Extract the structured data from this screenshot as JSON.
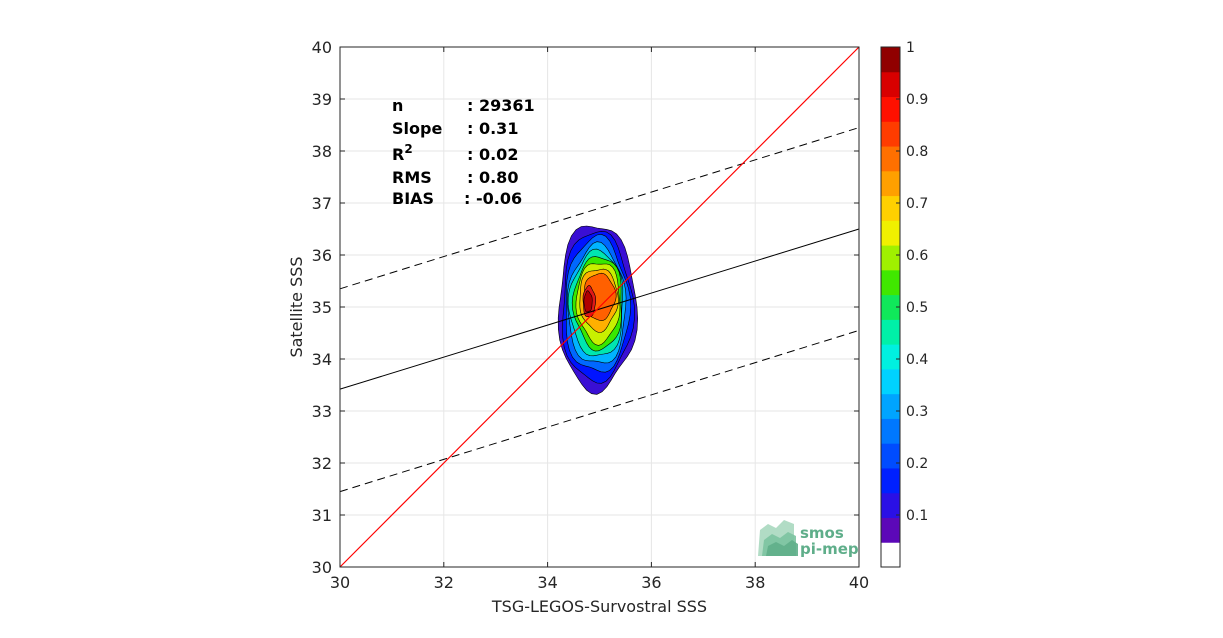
{
  "chart_data": {
    "type": "contour-density-scatter",
    "xlabel": "TSG-LEGOS-Survostral SSS",
    "ylabel": "Satellite SSS",
    "xlim": [
      30,
      40
    ],
    "ylim": [
      30,
      40
    ],
    "xticks": [
      "30",
      "32",
      "34",
      "36",
      "38",
      "40"
    ],
    "yticks": [
      "30",
      "31",
      "32",
      "33",
      "34",
      "35",
      "36",
      "37",
      "38",
      "39",
      "40"
    ],
    "grid": true,
    "stats": [
      {
        "key": "n",
        "value": ": 29361"
      },
      {
        "key": "Slope",
        "value": ": 0.31"
      },
      {
        "key": "R",
        "sup": "2",
        "value": ": 0.02"
      },
      {
        "key": "RMS",
        "value": ": 0.80"
      },
      {
        "key": "BIAS",
        "value": ": -0.06"
      }
    ],
    "lines": {
      "identity": {
        "x": [
          30,
          40
        ],
        "y": [
          30,
          40
        ],
        "color": "#ff0000"
      },
      "regression": {
        "x": [
          30,
          40
        ],
        "y": [
          33.42,
          36.5
        ],
        "color": "#000000"
      },
      "upper_bound": {
        "x": [
          30,
          40
        ],
        "y": [
          35.35,
          38.45
        ],
        "color": "#000000",
        "style": "dashed"
      },
      "lower_bound": {
        "x": [
          30,
          40
        ],
        "y": [
          31.45,
          34.55
        ],
        "color": "#000000",
        "style": "dashed"
      }
    },
    "density_center": {
      "x": 34.85,
      "y": 35.1
    },
    "density_levels": [
      {
        "level": 0.05,
        "rx": 0.75,
        "ry": 1.6,
        "cx": 34.95,
        "cy": 35.0,
        "color": "#3a0fd4"
      },
      {
        "level": 0.15,
        "rx": 0.68,
        "ry": 1.45,
        "cx": 34.95,
        "cy": 35.0,
        "color": "#0014ff"
      },
      {
        "level": 0.25,
        "rx": 0.62,
        "ry": 1.3,
        "cx": 34.95,
        "cy": 35.02,
        "color": "#0068ff"
      },
      {
        "level": 0.35,
        "rx": 0.56,
        "ry": 1.15,
        "cx": 34.95,
        "cy": 35.02,
        "color": "#00b4ff"
      },
      {
        "level": 0.45,
        "rx": 0.52,
        "ry": 1.02,
        "cx": 34.95,
        "cy": 35.05,
        "color": "#00e6b0"
      },
      {
        "level": 0.55,
        "rx": 0.47,
        "ry": 0.9,
        "cx": 34.98,
        "cy": 35.08,
        "color": "#38e800"
      },
      {
        "level": 0.65,
        "rx": 0.42,
        "ry": 0.78,
        "cx": 34.98,
        "cy": 35.1,
        "color": "#c8f000"
      },
      {
        "level": 0.75,
        "rx": 0.37,
        "ry": 0.6,
        "cx": 34.98,
        "cy": 35.15,
        "color": "#ffb000"
      },
      {
        "level": 0.85,
        "rx": 0.3,
        "ry": 0.45,
        "cx": 35.0,
        "cy": 35.2,
        "color": "#ff6000"
      },
      {
        "level": 0.9,
        "rx": 0.12,
        "ry": 0.3,
        "cx": 34.8,
        "cy": 35.1,
        "color": "#e01818"
      },
      {
        "level": 0.97,
        "rx": 0.08,
        "ry": 0.2,
        "cx": 34.78,
        "cy": 35.1,
        "color": "#b00000"
      }
    ],
    "colorbar": {
      "min": 0,
      "max": 1,
      "ticks": [
        "0.1",
        "0.2",
        "0.3",
        "0.4",
        "0.5",
        "0.6",
        "0.7",
        "0.8",
        "0.9",
        "1"
      ],
      "bands": [
        "#ffffff",
        "#5c08b8",
        "#2a10e6",
        "#0020ff",
        "#004cff",
        "#0078ff",
        "#00a4ff",
        "#00d2ff",
        "#00f0e0",
        "#00f0a8",
        "#10e85a",
        "#40e800",
        "#a0f000",
        "#f0f000",
        "#ffd000",
        "#ffa000",
        "#ff7000",
        "#ff3c00",
        "#ff1000",
        "#d80000",
        "#900000"
      ]
    },
    "watermark": {
      "line1": "smos",
      "line2": "pi-mep"
    }
  }
}
